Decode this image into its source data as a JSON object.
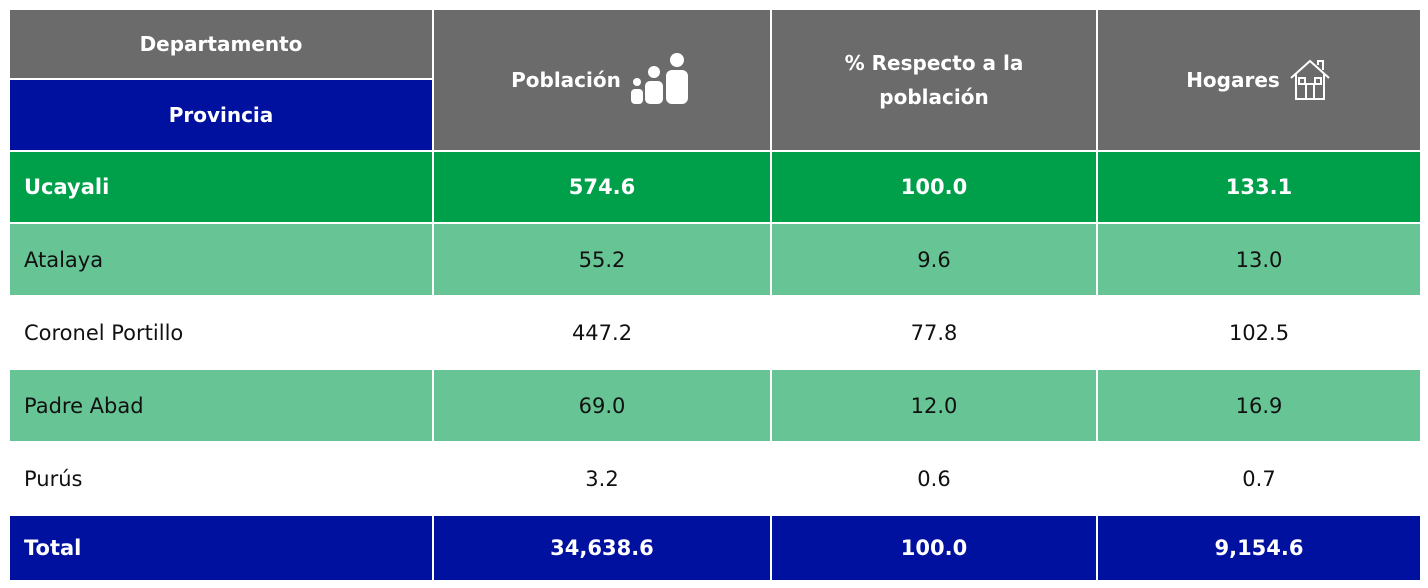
{
  "table": {
    "header": {
      "departamento": "Departamento",
      "provincia": "Provincia",
      "columns": [
        "Población",
        "% Respecto a la población",
        "Hogares"
      ]
    },
    "rows": [
      [
        "Ucayali",
        "574.6",
        "100.0",
        "133.1"
      ],
      [
        "Atalaya",
        "55.2",
        "9.6",
        "13.0"
      ],
      [
        "Coronel Portillo",
        "447.2",
        "77.8",
        "102.5"
      ],
      [
        "Padre Abad",
        "69.0",
        "12.0",
        "16.9"
      ],
      [
        "Purús",
        "3.2",
        "0.6",
        "0.7"
      ],
      [
        "Total",
        "34,638.6",
        "100.0",
        "9,154.6"
      ]
    ]
  }
}
